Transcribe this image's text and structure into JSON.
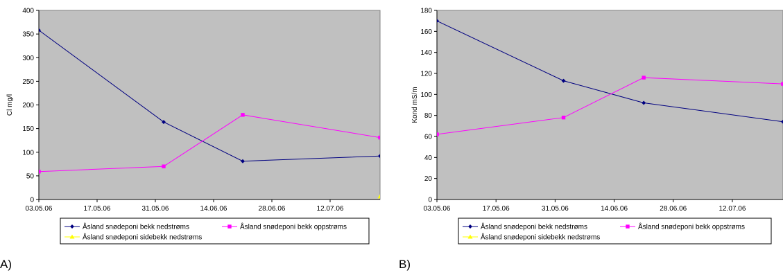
{
  "panels": [
    {
      "label": "A)",
      "chart_data": {
        "type": "line",
        "title": "",
        "xlabel": "",
        "ylabel": "Cl mg/l",
        "x_ticks": [
          "03.05.06",
          "17.05.06",
          "31.05.06",
          "14.06.06",
          "28.06.06",
          "12.07.06"
        ],
        "xlim": [
          "2006-05-03",
          "2006-07-24"
        ],
        "ylim": [
          0,
          400
        ],
        "y_ticks": [
          0,
          50,
          100,
          150,
          200,
          250,
          300,
          350,
          400
        ],
        "grid": false,
        "legend": "bottom",
        "series": [
          {
            "name": "Åsland snødeponi bekk nedstrøms",
            "color": "#000080",
            "marker": "diamond",
            "x": [
              "2006-05-03",
              "2006-06-02",
              "2006-06-21",
              "2006-07-24"
            ],
            "values": [
              358,
              164,
              81,
              92
            ]
          },
          {
            "name": "Åsland snødeponi bekk oppstrøms",
            "color": "#FF00FF",
            "marker": "square",
            "x": [
              "2006-05-03",
              "2006-06-02",
              "2006-06-21",
              "2006-07-24"
            ],
            "values": [
              59,
              70,
              179,
              131
            ]
          },
          {
            "name": "Åsland snødeponi sidebekk nedstrøms",
            "color": "#FFFF00",
            "marker": "triangle",
            "x": [
              "2006-07-24"
            ],
            "values": [
              6
            ]
          }
        ]
      }
    },
    {
      "label": "B)",
      "chart_data": {
        "type": "line",
        "title": "",
        "xlabel": "",
        "ylabel": "Kond mS/m",
        "x_ticks": [
          "03.05.06",
          "17.05.06",
          "31.05.06",
          "14.06.06",
          "28.06.06",
          "12.07.06"
        ],
        "xlim": [
          "2006-05-03",
          "2006-07-24"
        ],
        "ylim": [
          0,
          180
        ],
        "y_ticks": [
          0,
          20,
          40,
          60,
          80,
          100,
          120,
          140,
          160,
          180
        ],
        "grid": false,
        "legend": "bottom",
        "series": [
          {
            "name": "Åsland snødeponi bekk nedstrøms",
            "color": "#000080",
            "marker": "diamond",
            "x": [
              "2006-05-03",
              "2006-06-02",
              "2006-06-21",
              "2006-07-24"
            ],
            "values": [
              170,
              113,
              92,
              74
            ]
          },
          {
            "name": "Åsland snødeponi bekk oppstrøms",
            "color": "#FF00FF",
            "marker": "square",
            "x": [
              "2006-05-03",
              "2006-06-02",
              "2006-06-21",
              "2006-07-24"
            ],
            "values": [
              62,
              78,
              116,
              110
            ]
          },
          {
            "name": "Åsland snødeponi sidebekk nedstrøms",
            "color": "#FFFF00",
            "marker": "triangle",
            "x": [],
            "values": []
          }
        ]
      }
    }
  ]
}
